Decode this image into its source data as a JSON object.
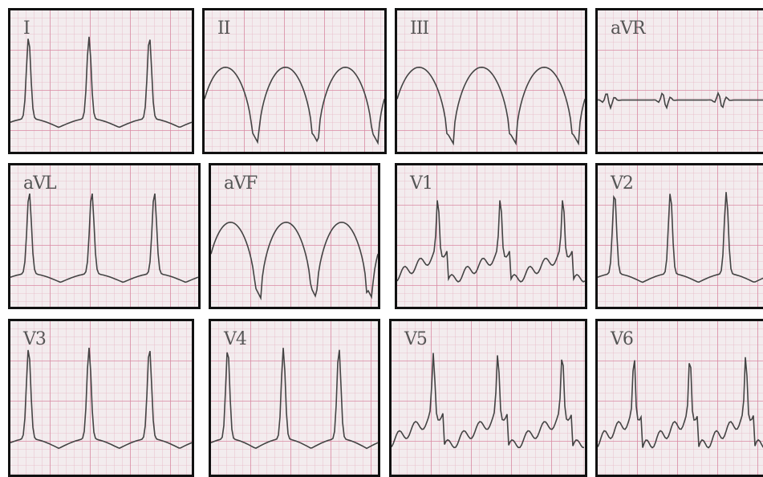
{
  "panels": [
    {
      "label": "I"
    },
    {
      "label": "II"
    },
    {
      "label": "III"
    },
    {
      "label": "aVR"
    },
    {
      "label": "aVL"
    },
    {
      "label": "aVF"
    },
    {
      "label": "V1"
    },
    {
      "label": "V2"
    },
    {
      "label": "V3"
    },
    {
      "label": "V4"
    },
    {
      "label": "V5"
    },
    {
      "label": "V6"
    }
  ]
}
